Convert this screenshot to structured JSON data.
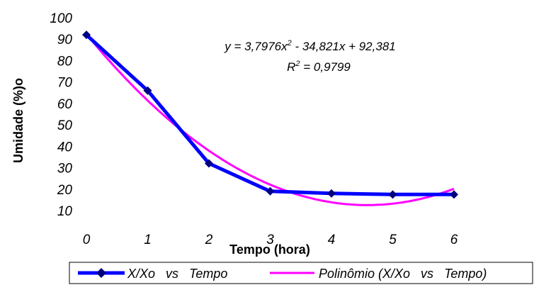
{
  "chart_data": {
    "type": "line",
    "xlabel": "Tempo (hora)",
    "ylabel": "Umidade (%)o",
    "xlim": [
      0,
      6
    ],
    "ylim": [
      10,
      100
    ],
    "xticks": [
      "0",
      "1",
      "2",
      "3",
      "4",
      "5",
      "6"
    ],
    "yticks": [
      "10",
      "20",
      "30",
      "40",
      "50",
      "60",
      "70",
      "80",
      "90",
      "100"
    ],
    "grid": false,
    "legend_position": "bottom",
    "series": [
      {
        "name": "X/Xo   vs   Tempo",
        "color": "#0000ff",
        "marker": "diamond",
        "x": [
          0,
          1,
          2,
          3,
          4,
          5,
          6
        ],
        "y": [
          92,
          66,
          32,
          19,
          18,
          17.5,
          17.5
        ]
      },
      {
        "name": "Polinômio (X/Xo   vs   Tempo)",
        "color": "#ff00ff",
        "marker": "none",
        "trendline": {
          "a": 3.7976,
          "b": -34.821,
          "c": 92.381
        }
      }
    ],
    "annotations": {
      "equation_prefix": "y = 3,7976x",
      "equation_exp": "2",
      "equation_suffix": " - 34,821x + 92,381",
      "r2_prefix": "R",
      "r2_exp": "2",
      "r2_suffix": " = 0,9799"
    }
  }
}
